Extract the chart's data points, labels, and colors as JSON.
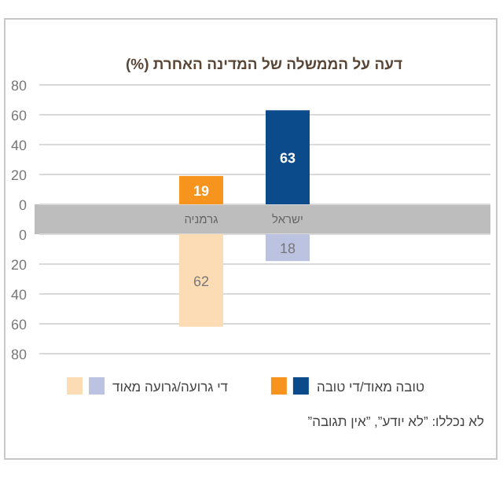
{
  "chart_data": [
    {
      "type": "bar",
      "title": "דעה על הממשלה של המדינה האחרת (%)",
      "categories": [
        "גרמניה",
        "ישראל"
      ],
      "series": [
        {
          "name": "טובה מאוד/די טובה",
          "colors": [
            "#f7941d",
            "#0b4a8b"
          ],
          "values": [
            19,
            63
          ]
        }
      ],
      "ylim": [
        0,
        80
      ],
      "yticks": [
        0,
        20,
        40,
        60,
        80
      ],
      "grid": "y",
      "data_labels": true,
      "legend": "bottom"
    },
    {
      "type": "bar",
      "categories": [
        null,
        null
      ],
      "series": [
        {
          "name": "די גרועה/גרועה מאוד",
          "colors": [
            "#fcdcb5",
            "#bcc3e0"
          ],
          "values": [
            62,
            18
          ]
        }
      ],
      "ylim": [
        80,
        0
      ],
      "yticks": [
        0,
        20,
        40,
        60,
        80
      ],
      "grid": "y",
      "data_labels": true,
      "tick_labels": "y",
      "legend": "bottom",
      "annotations": [
        "לא נכללו: ”לא יודע”, ”אין תגובה”"
      ]
    }
  ]
}
